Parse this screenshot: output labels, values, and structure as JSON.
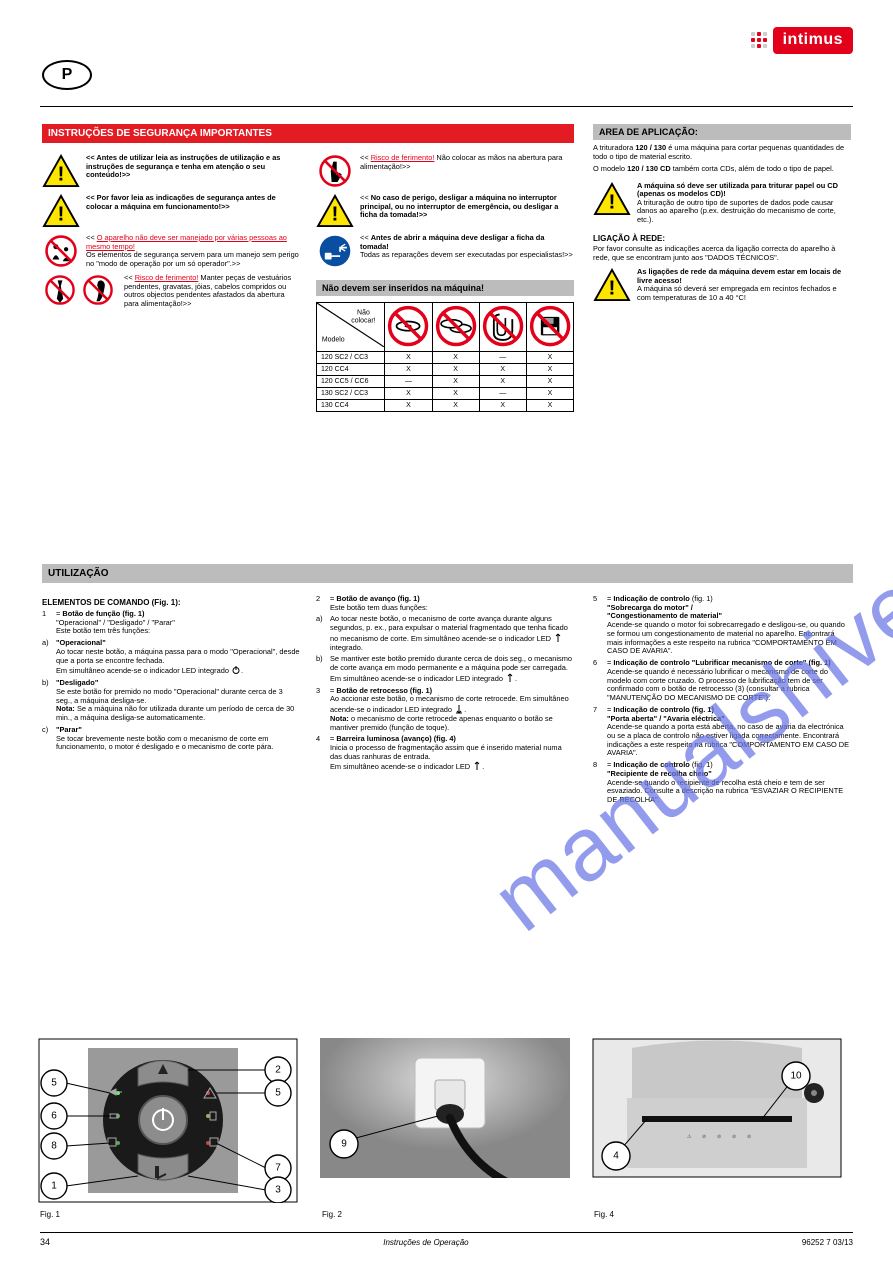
{
  "logo": {
    "text": "intimus"
  },
  "lang": "P",
  "sections": {
    "safety_bar": "INSTRUÇÕES DE SEGURANÇA IMPORTANTES",
    "scope_bar": "AREA DE APLICAÇÃO:",
    "controls_bar": "UTILIZAÇÃO",
    "nofeed_bar": "Não devem ser inseridos na máquina!"
  },
  "col1": {
    "r1": "<< Antes de utilizar leia as instruções de utilização e as instruções de segurança e tenha em atenção o seu conteúdo!>>",
    "r2": "<< Por favor leia as indicações de segurança antes de colocar a máquina em funcionamento!>>",
    "r3": "<< <span class='redlink'>O aparelho não deve ser manejado por várias pessoas ao mesmo tempo!</span><br>Os elementos de segurança servem para um manejo sem perigo no \"modo de operação por um só operador\".>>",
    "r4": "<< <span class='redlink'>Risco de ferimento!</span> Manter peças de vestuários pendentes, gravatas, jóias, cabelos compridos ou outros objectos pendentes afastados da abertura para alimentação!>>"
  },
  "col2": {
    "r1": "<< <span class='redlink'>Risco de ferimento!</span> Não colocar as mãos na abertura para alimentação!>>",
    "r2": "<< <b>No caso de perigo, desligar a máquina no interruptor principal, ou no interruptor de emergência, ou desligar a ficha da tomada!>></b>",
    "r3": "<< <b>Antes de abrir a máquina deve desligar a ficha da tomada!</b><br>Todas as reparações devem ser executadas por especialistas!>>"
  },
  "col3": {
    "p1": "A trituradora <b>120 / 130</b> é uma máquina para cortar pequenas quantidades de todo o tipo de material escrito.",
    "p2": "O modelo <b>120 / 130 CD</b> também corta CDs, além de todo o tipo de papel.",
    "warn": "<b>A máquina só deve ser utilizada para triturar papel ou CD (apenas os modelos CD)!</b><br>A trituração de outro tipo de suportes de dados pode causar danos ao aparelho (p.ex. destruição do mecanismo de corte, etc.).",
    "mains_h": "LIGAÇÃO À REDE:",
    "mains_p": "Por favor consulte as indicações acerca da ligação correcta do aparelho à rede, que se encontram junto aos \"DADOS TÉCNICOS\".",
    "warn2": "<b>As ligações de rede da máquina devem estar em locais de livre acesso!</b><br>A máquina só deverá ser empregada em recintos fechados e com temperaturas de 10 a 40 °C!"
  },
  "feed": {
    "diag_top": "Não\ncolocar!",
    "diag_bot": "Modelo",
    "icons": [
      "DVD",
      "CD",
      "clip",
      "disk"
    ],
    "rows": [
      {
        "label": "120 SC2 / CC3",
        "v": [
          "X",
          "X",
          "—",
          "X"
        ]
      },
      {
        "label": "120 CC4",
        "v": [
          "X",
          "X",
          "X",
          "X"
        ]
      },
      {
        "label": "120 CC5 / CC6",
        "v": [
          "—",
          "X",
          "X",
          "X"
        ]
      },
      {
        "label": "130 SC2 / CC3",
        "v": [
          "X",
          "X",
          "—",
          "X"
        ]
      },
      {
        "label": "130 CC4",
        "v": [
          "X",
          "X",
          "X",
          "X"
        ]
      }
    ]
  },
  "controls": {
    "c1": {
      "elements_h": "ELEMENTOS DE COMANDO (Fig. 1):",
      "i1": {
        "n": "1",
        "t": "= <b>Botão de função (fig. 1)</b><br>\"Operacional\" / \"Desligado\" / \"Parar\"<br>Este botão tem três funções:"
      },
      "a": {
        "n": "a)",
        "t": "<b>\"Operacional\"</b><br>Ao tocar neste botão, a máquina passa para o modo \"Operacional\", desde que a porta se encontre fechada.<br>Em simultâneo acende-se o indicador LED integrado <svg class='power-sym' viewBox='0 0 10 10'><circle cx='5' cy='5.5' r='3' fill='none' stroke='#000' stroke-width='1'/><line x1='5' y1='1' x2='5' y2='5' stroke='#000' stroke-width='1'/></svg>."
      },
      "b": {
        "n": "b)",
        "t": "<b>\"Desligado\"</b><br>Se este botão for premido no modo \"Operacional\" durante cerca de 3 seg., a máquina desliga-se.<br><b>Nota:</b> Se a máquina não for utilizada durante um período de cerca de 30 min., a máquina desliga-se automaticamente."
      },
      "c": {
        "n": "c)",
        "t": "<b>\"Parar\"</b><br>Se tocar brevemente neste botão com o mecanismo de corte em funcionamento, o motor é desligado e o mecanismo de corte pára."
      }
    },
    "c2": {
      "i2": {
        "n": "2",
        "t": "= <b>Botão de avanço (fig. 1)</b><br>Este botão tem duas funções:"
      },
      "a": {
        "n": "a)",
        "t": "Ao tocar neste botão, o mecanismo de corte avança durante alguns segundos, p. ex., para expulsar o material fragmentado que tenha ficado no mecanismo de corte. Em simultâneo acende-se o indicador LED <svg class='power-sym' viewBox='0 0 10 10'><path d='M5 1 L5 9 M5 1 L3 3 M5 1 L7 3' fill='none' stroke='#000' stroke-width='1'/></svg> integrado."
      },
      "b": {
        "n": "b)",
        "t": "Se mantiver este botão premido durante cerca de dois seg., o mecanismo de corte avança em modo permanente e a máquina pode ser carregada. Em simultâneo acende-se o indicador LED integrado <svg class='power-sym' viewBox='0 0 10 10'><path d='M5 1 L5 9 M5 1 L3 3 M5 1 L7 3' fill='none' stroke='#000' stroke-width='1'/></svg>."
      },
      "i3": {
        "n": "3",
        "t": "= <b>Botão de retrocesso (fig. 1)</b><br>Ao accionar este botão, o mecanismo de corte retrocede. Em simultâneo acende-se o indicador LED integrado <svg class='power-sym' viewBox='0 0 10 10'><path d='M5 9 L5 1 M5 9 L3 7 M5 9 L7 7 M2 9 L8 9' fill='none' stroke='#000' stroke-width='1'/></svg>.<br><b>Nota:</b> o mecanismo de corte retrocede apenas enquanto o botão se mantiver premido (função de toque)."
      },
      "i4": {
        "n": "4",
        "t": "= <b>Barreira luminosa (avanço) (fig. 4)</b><br>Inicia o processo de fragmentação assim que é inserido material numa das duas ranhuras de entrada.<br>Em simultâneo acende-se o indicador LED <svg class='power-sym' viewBox='0 0 10 10'><path d='M5 1 L5 9 M5 1 L3 3 M5 1 L7 3' fill='none' stroke='#000' stroke-width='1'/></svg>."
      }
    },
    "c3": {
      "i5": {
        "n": "5",
        "t": "= <b>Indicação de controlo</b> (fig. 1)<br><b>\"Sobrecarga do motor\" /</b><br><b>\"Congestionamento de material\"</b><br>Acende-se quando o motor foi sobrecarregado e desligou-se, ou quando se formou um congestionamento de material no aparelho. Encontrará mais informações a este respeito na rubrica \"COMPORTAMENTO EM CASO DE AVARIA\"."
      },
      "i6": {
        "n": "6",
        "t": "= <b>Indicação de controlo \"Lubrificar mecanismo de corte\" (fig. 1)</b><br>Acende-se quando é necessário lubrificar o mecanismo de corte do modelo com corte cruzado. O processo de lubrificação tem de ser confirmado com o botão de retrocesso (3) (consultar a rubrica \"MANUTENÇÃO DO MECANISMO DE CORTE\")."
      },
      "i7": {
        "n": "7",
        "t": "= <b>Indicação de controlo (fig. 1)<br>\"Porta aberta\" / \"Avaria eléctrica\"</b><br>Acende-se quando a porta está aberta, no caso de avaria da electrónica ou se a placa de controlo não estiver ligada correctamente. Encontrará indicações a este respeito na rubrica \"COMPORTAMENTO EM CASO DE AVARIA\"."
      },
      "i8": {
        "n": "8",
        "t": "= <b>Indicação de controlo</b> (fig. 1)<br><b>\"Recipiente de recolha cheio\"</b><br>Acende-se quando o recipiente de recolha está cheio e tem de ser esvaziado. Consulte a descrição na rubrica \"ESVAZIAR O RECIPIENTE DE RECOLHA\"."
      }
    }
  },
  "fig": {
    "fig1_label": "Fig. 1",
    "fig2_label": "Fig. 2",
    "fig4_label": "Fig. 4",
    "fig1": {
      "ring_labels": [
        "1",
        "2",
        "3",
        "5",
        "6",
        "7",
        "8"
      ]
    },
    "fig2": {
      "ring": "9"
    },
    "fig4": {
      "ring_a": "4",
      "ring_b": "10"
    }
  },
  "footer": {
    "page": "34",
    "docid": "96252 7 03/13",
    "mid": "Instruções de Operação"
  }
}
